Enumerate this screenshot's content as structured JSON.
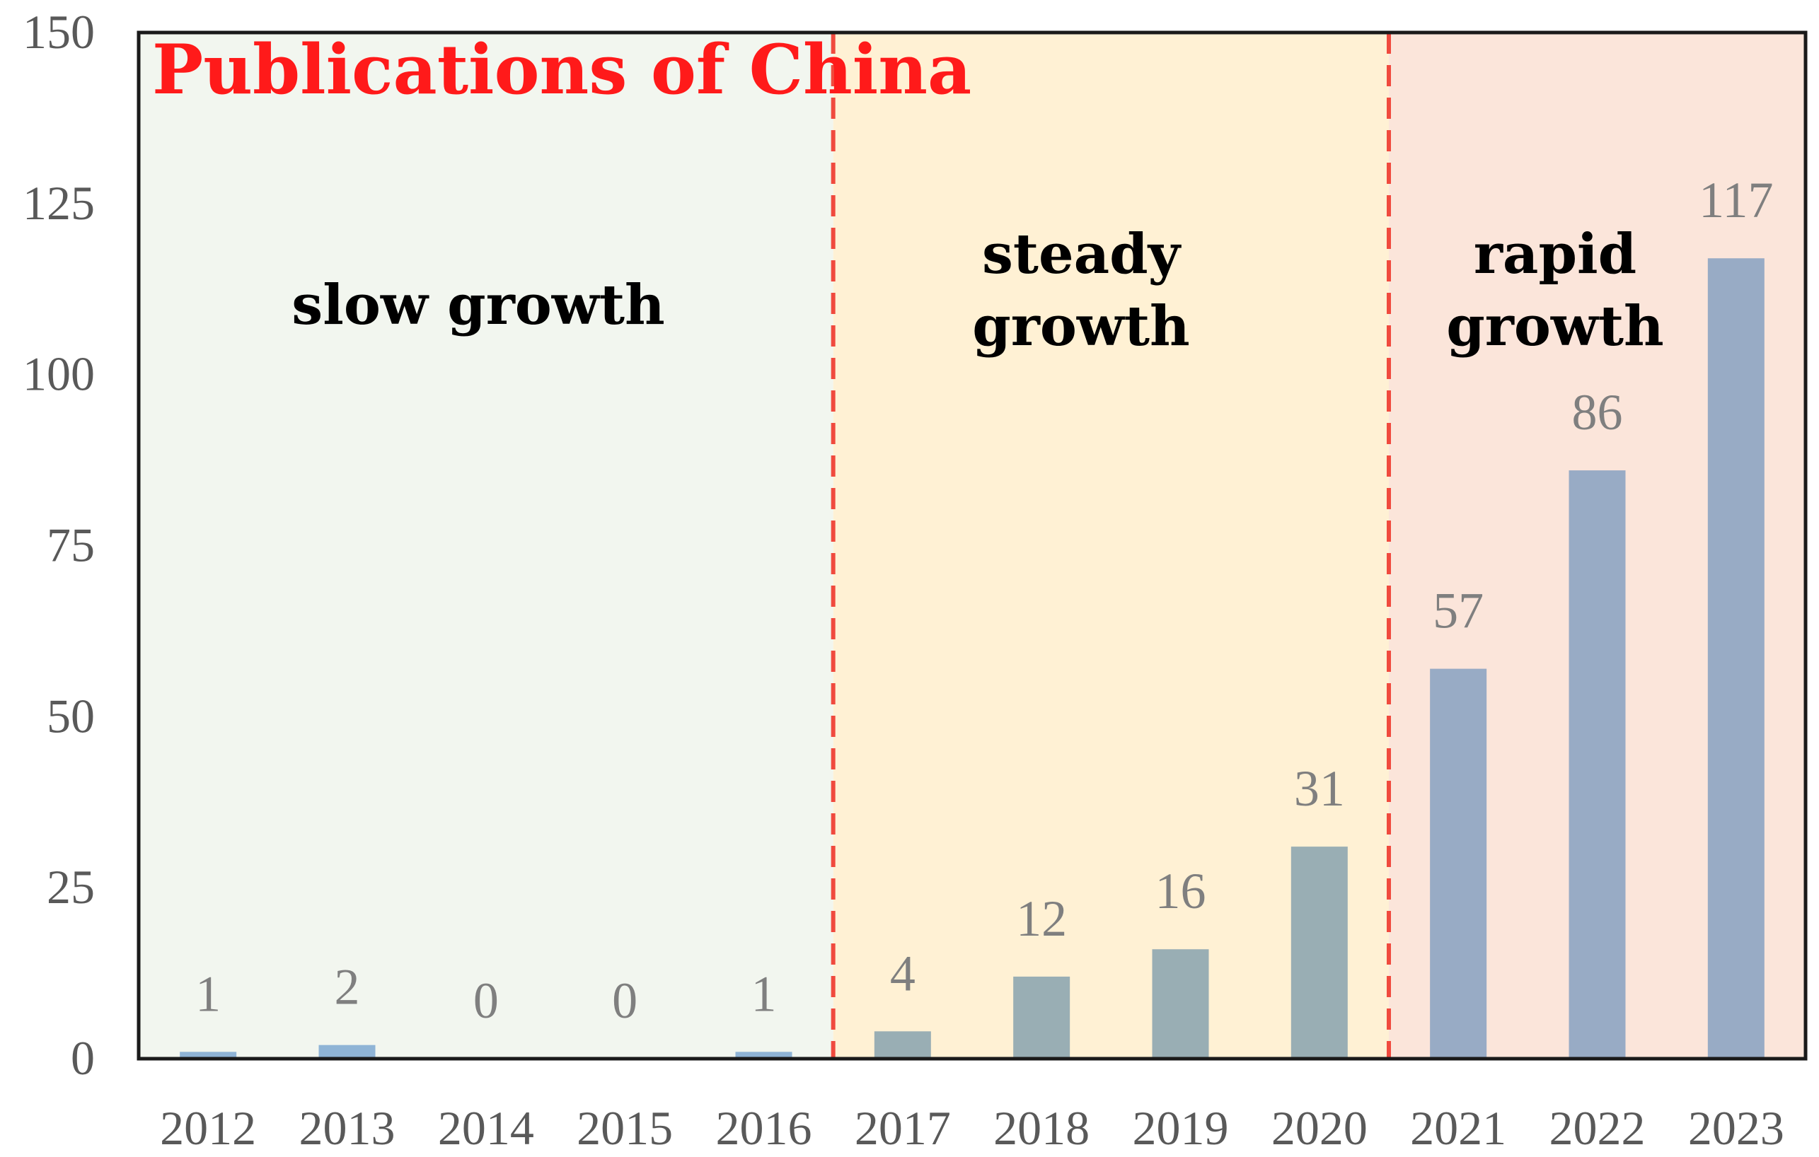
{
  "chart_data": {
    "type": "bar",
    "title": "Publications of China",
    "xlabel": "",
    "ylabel": "",
    "ylim": [
      0,
      150
    ],
    "yticks": [
      0,
      25,
      50,
      75,
      100,
      125,
      150
    ],
    "categories": [
      "2012",
      "2013",
      "2014",
      "2015",
      "2016",
      "2017",
      "2018",
      "2019",
      "2020",
      "2021",
      "2022",
      "2023"
    ],
    "values": [
      1,
      2,
      0,
      0,
      1,
      4,
      12,
      16,
      31,
      57,
      86,
      117
    ],
    "phases": [
      {
        "label_lines": [
          "slow",
          "growth"
        ],
        "label_layout": "single-line",
        "from": "2012",
        "to": "2016",
        "background": "#f2f6ef",
        "bar_color": "#8fb4d6"
      },
      {
        "label_lines": [
          "steady",
          "growth"
        ],
        "label_layout": "two-line",
        "from": "2017",
        "to": "2020",
        "background": "#fff1d4",
        "bar_color": "#99aeb4"
      },
      {
        "label_lines": [
          "rapid",
          "growth"
        ],
        "label_layout": "two-line",
        "from": "2021",
        "to": "2023",
        "background": "#fbe5da",
        "bar_color": "#98abc5"
      }
    ],
    "divider_color": "#f04a3e",
    "grid": false,
    "legend": "none"
  }
}
